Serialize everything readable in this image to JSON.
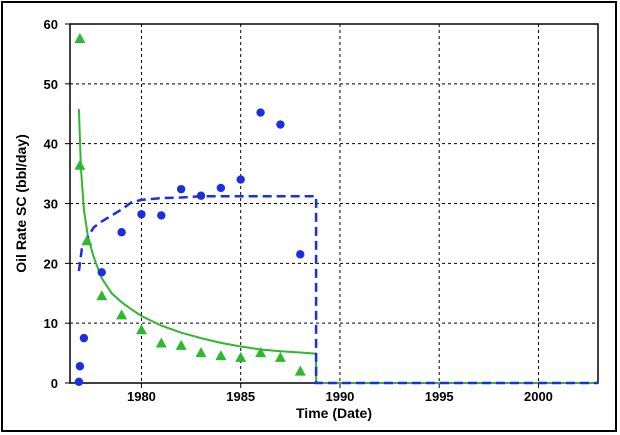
{
  "chart_data": {
    "type": "line",
    "title": "",
    "xlabel": "Time (Date)",
    "ylabel": "Oil Rate SC (bbl/day)",
    "xlim": [
      1976.4,
      2003.0
    ],
    "ylim": [
      0,
      60
    ],
    "x_ticks": [
      1980,
      1985,
      1990,
      1995,
      2000
    ],
    "y_ticks": [
      0,
      10,
      20,
      30,
      40,
      50,
      60
    ],
    "grid": true,
    "grid_style": "dashed",
    "legend": "none",
    "series": [
      {
        "kind": "scatter",
        "marker": "circle",
        "color": "#1c2fe0",
        "points": [
          [
            1976.85,
            0.2
          ],
          [
            1976.9,
            2.8
          ],
          [
            1977.1,
            7.5
          ],
          [
            1978.0,
            18.5
          ],
          [
            1979.0,
            25.2
          ],
          [
            1980.0,
            28.2
          ],
          [
            1981.0,
            28.0
          ],
          [
            1982.0,
            32.4
          ],
          [
            1983.0,
            31.3
          ],
          [
            1984.0,
            32.6
          ],
          [
            1985.0,
            34.0
          ],
          [
            1986.0,
            45.2
          ],
          [
            1987.0,
            43.2
          ],
          [
            1988.0,
            21.5
          ]
        ]
      },
      {
        "kind": "scatter",
        "marker": "triangle",
        "color": "#2db82d",
        "points": [
          [
            1976.9,
            57.5
          ],
          [
            1976.9,
            36.3
          ],
          [
            1977.25,
            23.7
          ],
          [
            1978.0,
            14.5
          ],
          [
            1979.0,
            11.3
          ],
          [
            1980.0,
            8.8
          ],
          [
            1981.0,
            6.6
          ],
          [
            1982.0,
            6.2
          ],
          [
            1983.0,
            5.0
          ],
          [
            1984.0,
            4.5
          ],
          [
            1985.0,
            4.2
          ],
          [
            1986.0,
            5.0
          ],
          [
            1987.0,
            4.2
          ],
          [
            1988.0,
            1.9
          ]
        ]
      },
      {
        "kind": "line",
        "style": "solid",
        "color": "#2db82d",
        "points": [
          [
            1976.85,
            45.8
          ],
          [
            1976.95,
            36.0
          ],
          [
            1977.1,
            29.0
          ],
          [
            1977.3,
            24.5
          ],
          [
            1977.6,
            21.0
          ],
          [
            1978.0,
            17.5
          ],
          [
            1978.5,
            15.0
          ],
          [
            1979.0,
            13.5
          ],
          [
            1979.5,
            12.3
          ],
          [
            1980.0,
            11.2
          ],
          [
            1981.0,
            9.6
          ],
          [
            1982.0,
            8.4
          ],
          [
            1983.0,
            7.5
          ],
          [
            1984.0,
            6.7
          ],
          [
            1985.0,
            6.1
          ],
          [
            1986.0,
            5.6
          ],
          [
            1987.0,
            5.3
          ],
          [
            1988.0,
            5.1
          ],
          [
            1988.8,
            4.9
          ],
          [
            1988.8,
            0.0
          ],
          [
            2003.0,
            0.0
          ]
        ]
      },
      {
        "kind": "line",
        "style": "dashed",
        "color": "#1c2fe0",
        "points": [
          [
            1976.85,
            18.7
          ],
          [
            1977.0,
            22.5
          ],
          [
            1977.3,
            24.5
          ],
          [
            1977.6,
            26.0
          ],
          [
            1978.0,
            27.0
          ],
          [
            1978.5,
            28.0
          ],
          [
            1979.0,
            29.0
          ],
          [
            1979.5,
            30.2
          ],
          [
            1980.0,
            30.6
          ],
          [
            1981.0,
            30.9
          ],
          [
            1982.0,
            31.0
          ],
          [
            1983.0,
            31.2
          ],
          [
            1984.0,
            31.2
          ],
          [
            1985.0,
            31.2
          ],
          [
            1986.0,
            31.2
          ],
          [
            1987.0,
            31.2
          ],
          [
            1988.0,
            31.2
          ],
          [
            1988.8,
            31.2
          ],
          [
            1988.8,
            0.0
          ],
          [
            2003.0,
            0.0
          ]
        ]
      }
    ]
  }
}
